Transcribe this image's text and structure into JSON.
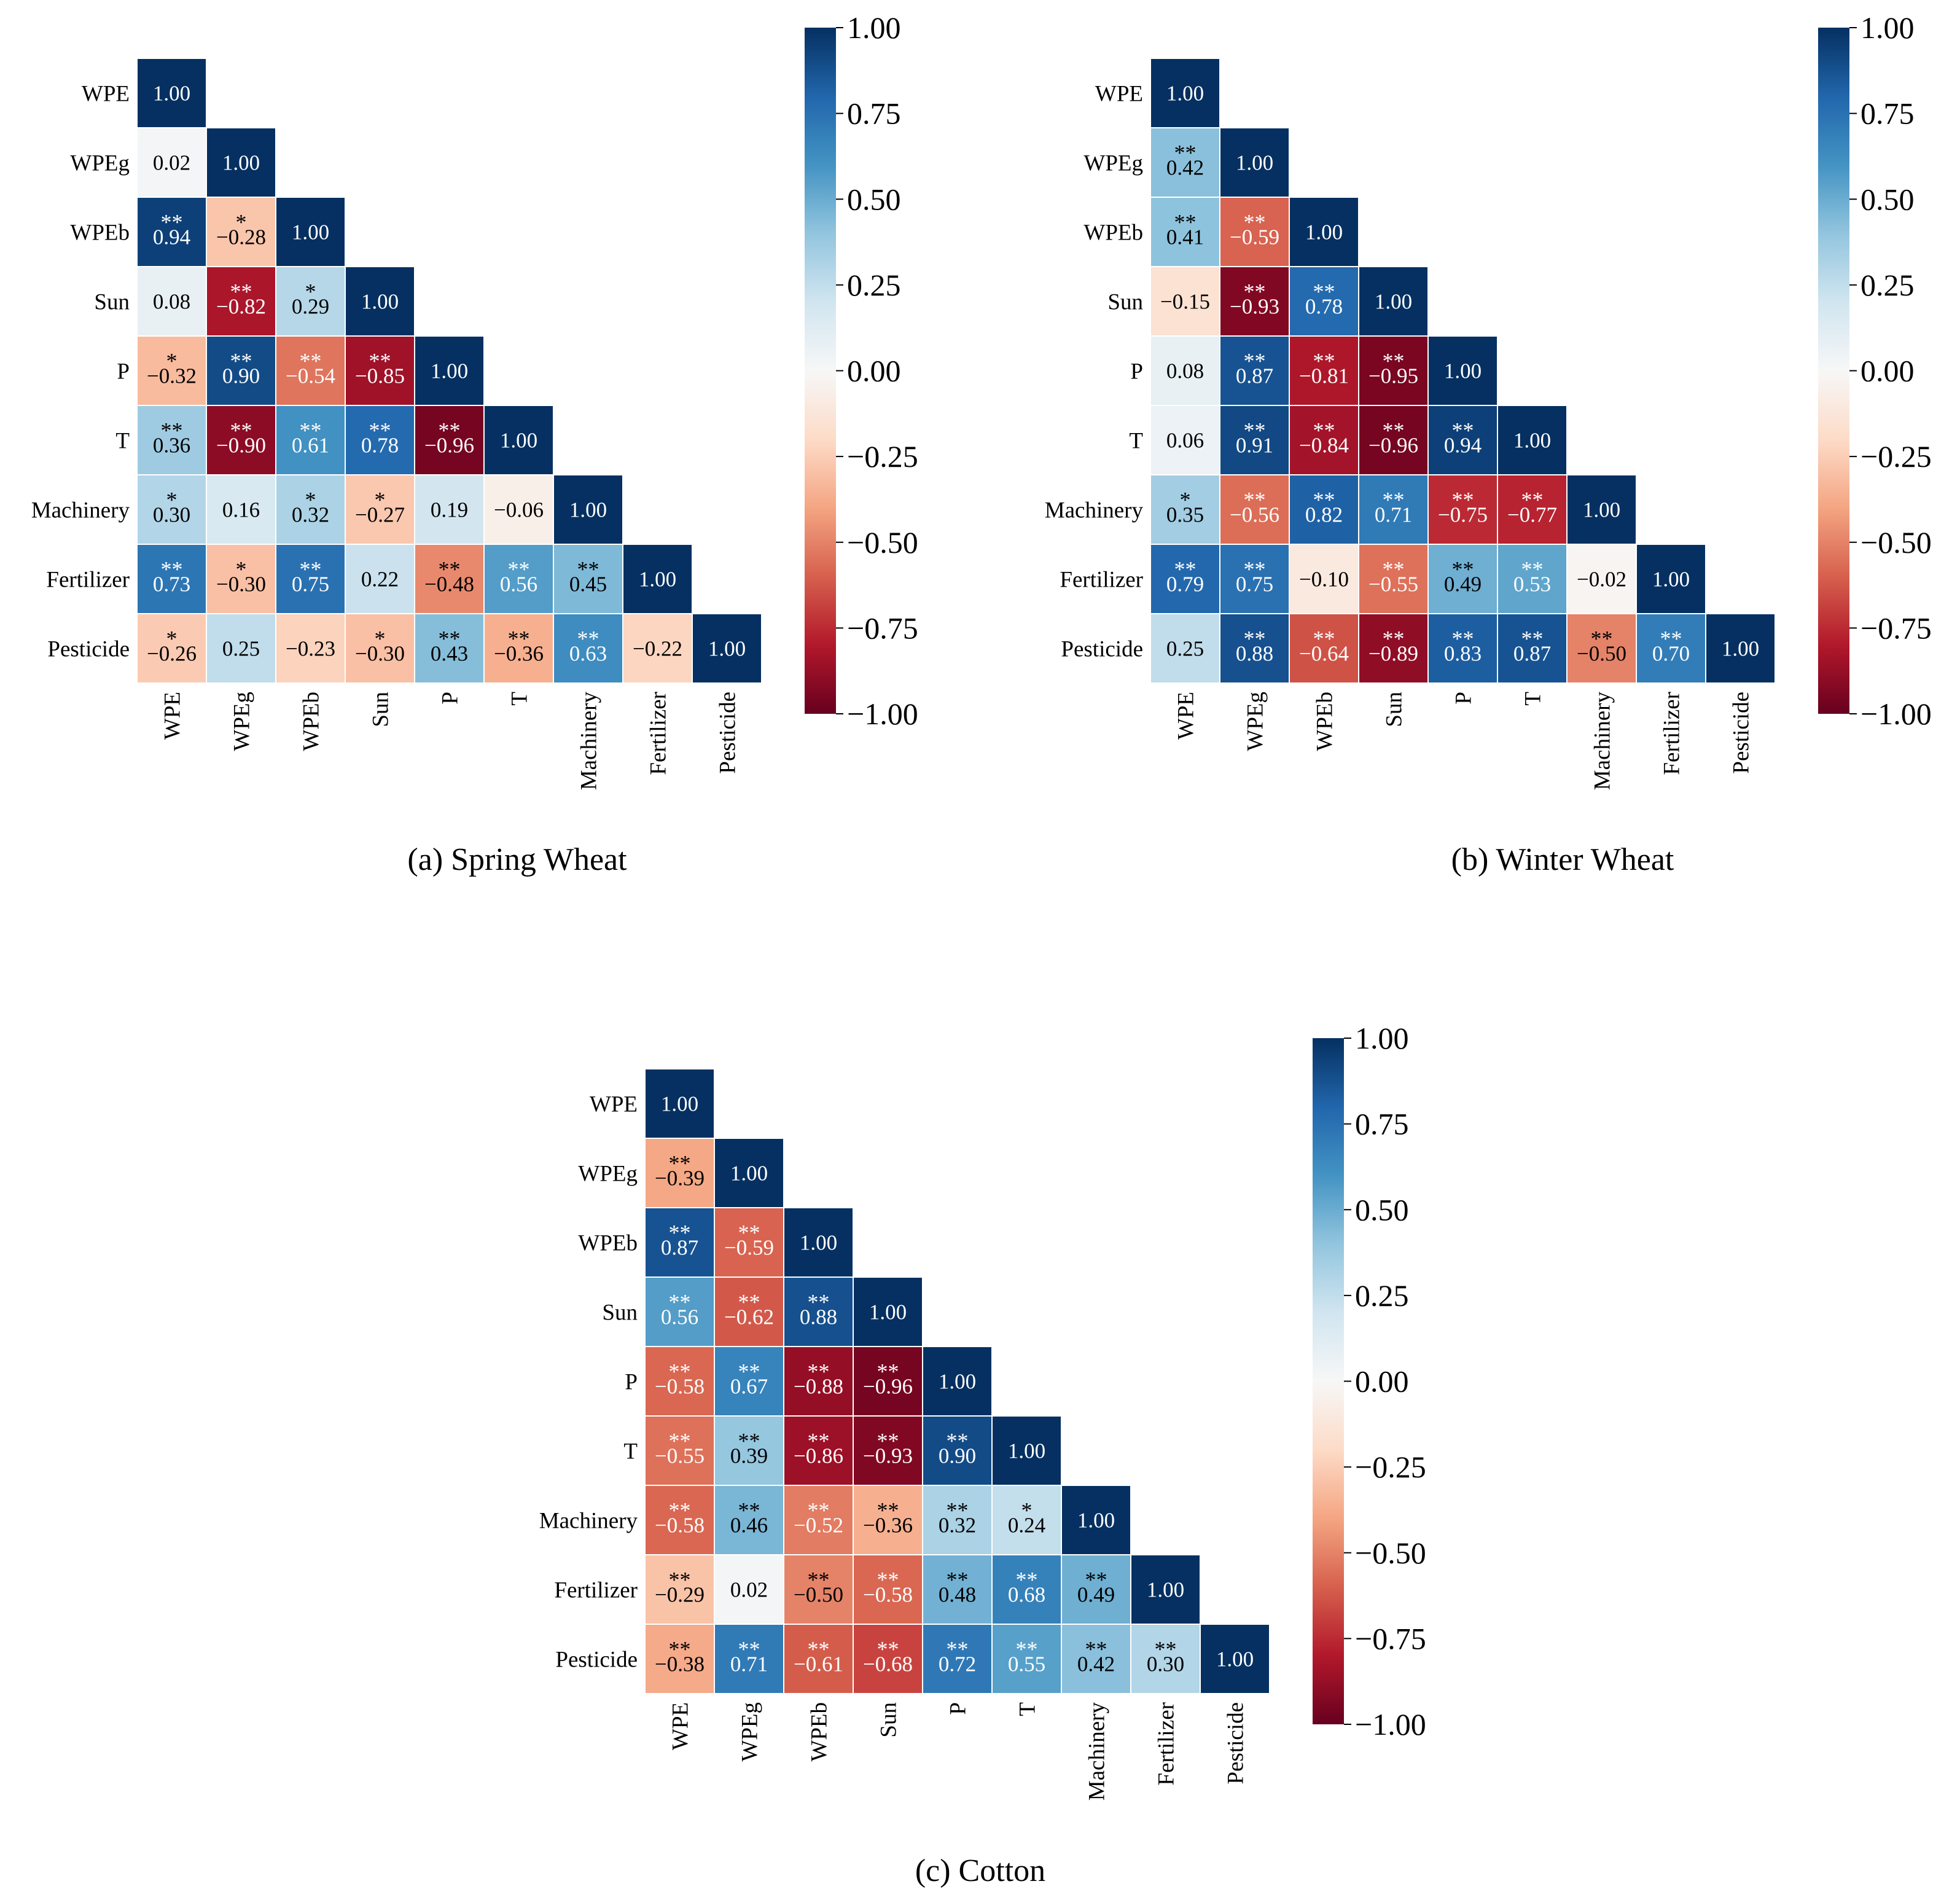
{
  "figure": {
    "variables": [
      "WPE",
      "WPEg",
      "WPEb",
      "Sun",
      "P",
      "T",
      "Machinery",
      "Fertilizer",
      "Pesticide"
    ]
  },
  "colorbar": {
    "ticks": [
      "1.00",
      "0.75",
      "0.50",
      "0.25",
      "0.00",
      "−0.25",
      "−0.50",
      "−0.75",
      "−1.00"
    ],
    "tick_values": [
      1.0,
      0.75,
      0.5,
      0.25,
      0.0,
      -0.25,
      -0.5,
      -0.75,
      -1.0
    ],
    "range": [
      -1.0,
      1.0
    ],
    "colormap": "RdBu",
    "stops": [
      "#67001f",
      "#b2182b",
      "#d6604d",
      "#f4a582",
      "#fddbc7",
      "#f7f7f7",
      "#d1e5f0",
      "#92c5de",
      "#4393c3",
      "#2166ac",
      "#053061"
    ]
  },
  "chart_data": [
    {
      "type": "heatmap",
      "title": "(a) Spring Wheat",
      "labels": [
        "WPE",
        "WPEg",
        "WPEb",
        "Sun",
        "P",
        "T",
        "Machinery",
        "Fertilizer",
        "Pesticide"
      ],
      "values": [
        [
          1.0
        ],
        [
          0.02,
          1.0
        ],
        [
          0.94,
          -0.28,
          1.0
        ],
        [
          0.08,
          -0.82,
          0.29,
          1.0
        ],
        [
          -0.32,
          0.9,
          -0.54,
          -0.85,
          1.0
        ],
        [
          0.36,
          -0.9,
          0.61,
          0.78,
          -0.96,
          1.0
        ],
        [
          0.3,
          0.16,
          0.32,
          -0.27,
          0.19,
          -0.06,
          1.0
        ],
        [
          0.73,
          -0.3,
          0.75,
          0.22,
          -0.48,
          0.56,
          0.45,
          1.0
        ],
        [
          -0.26,
          0.25,
          -0.23,
          -0.3,
          0.43,
          -0.36,
          0.63,
          -0.22,
          1.0
        ]
      ],
      "significance": [
        [
          ""
        ],
        [
          "",
          ""
        ],
        [
          "**",
          "*",
          ""
        ],
        [
          "",
          "**",
          "*",
          ""
        ],
        [
          "*",
          "**",
          "**",
          "**",
          ""
        ],
        [
          "**",
          "**",
          "**",
          "**",
          "**",
          ""
        ],
        [
          "*",
          "",
          "*",
          "*",
          "",
          "",
          ""
        ],
        [
          "**",
          "*",
          "**",
          "",
          "**",
          "**",
          "**",
          ""
        ],
        [
          "*",
          "",
          "",
          "*",
          "**",
          "**",
          "**",
          "",
          ""
        ]
      ]
    },
    {
      "type": "heatmap",
      "title": "(b) Winter Wheat",
      "labels": [
        "WPE",
        "WPEg",
        "WPEb",
        "Sun",
        "P",
        "T",
        "Machinery",
        "Fertilizer",
        "Pesticide"
      ],
      "values": [
        [
          1.0
        ],
        [
          0.42,
          1.0
        ],
        [
          0.41,
          -0.59,
          1.0
        ],
        [
          -0.15,
          -0.93,
          0.78,
          1.0
        ],
        [
          0.08,
          0.87,
          -0.81,
          -0.95,
          1.0
        ],
        [
          0.06,
          0.91,
          -0.84,
          -0.96,
          0.94,
          1.0
        ],
        [
          0.35,
          -0.56,
          0.82,
          0.71,
          -0.75,
          -0.77,
          1.0
        ],
        [
          0.79,
          0.75,
          -0.1,
          -0.55,
          0.49,
          0.53,
          -0.02,
          1.0
        ],
        [
          0.25,
          0.88,
          -0.64,
          -0.89,
          0.83,
          0.87,
          -0.5,
          0.7,
          1.0
        ]
      ],
      "significance": [
        [
          ""
        ],
        [
          "**",
          ""
        ],
        [
          "**",
          "**",
          ""
        ],
        [
          "",
          "**",
          "**",
          ""
        ],
        [
          "",
          "**",
          "**",
          "**",
          ""
        ],
        [
          "",
          "**",
          "**",
          "**",
          "**",
          ""
        ],
        [
          "*",
          "**",
          "**",
          "**",
          "**",
          "**",
          ""
        ],
        [
          "**",
          "**",
          "",
          "**",
          "**",
          "**",
          "",
          ""
        ],
        [
          "",
          "**",
          "**",
          "**",
          "**",
          "**",
          "**",
          "**",
          ""
        ]
      ]
    },
    {
      "type": "heatmap",
      "title": "(c) Cotton",
      "labels": [
        "WPE",
        "WPEg",
        "WPEb",
        "Sun",
        "P",
        "T",
        "Machinery",
        "Fertilizer",
        "Pesticide"
      ],
      "values": [
        [
          1.0
        ],
        [
          -0.39,
          1.0
        ],
        [
          0.87,
          -0.59,
          1.0
        ],
        [
          0.56,
          -0.62,
          0.88,
          1.0
        ],
        [
          -0.58,
          0.67,
          -0.88,
          -0.96,
          1.0
        ],
        [
          -0.55,
          0.39,
          -0.86,
          -0.93,
          0.9,
          1.0
        ],
        [
          -0.58,
          0.46,
          -0.52,
          -0.36,
          0.32,
          0.24,
          1.0
        ],
        [
          -0.29,
          0.02,
          -0.5,
          -0.58,
          0.48,
          0.68,
          0.49,
          1.0
        ],
        [
          -0.38,
          0.71,
          -0.61,
          -0.68,
          0.72,
          0.55,
          0.42,
          0.3,
          1.0
        ]
      ],
      "significance": [
        [
          ""
        ],
        [
          "**",
          ""
        ],
        [
          "**",
          "**",
          ""
        ],
        [
          "**",
          "**",
          "**",
          ""
        ],
        [
          "**",
          "**",
          "**",
          "**",
          ""
        ],
        [
          "**",
          "**",
          "**",
          "**",
          "**",
          ""
        ],
        [
          "**",
          "**",
          "**",
          "**",
          "**",
          "*",
          ""
        ],
        [
          "**",
          "",
          "**",
          "**",
          "**",
          "**",
          "**",
          ""
        ],
        [
          "**",
          "**",
          "**",
          "**",
          "**",
          "**",
          "**",
          "**",
          ""
        ]
      ]
    }
  ]
}
